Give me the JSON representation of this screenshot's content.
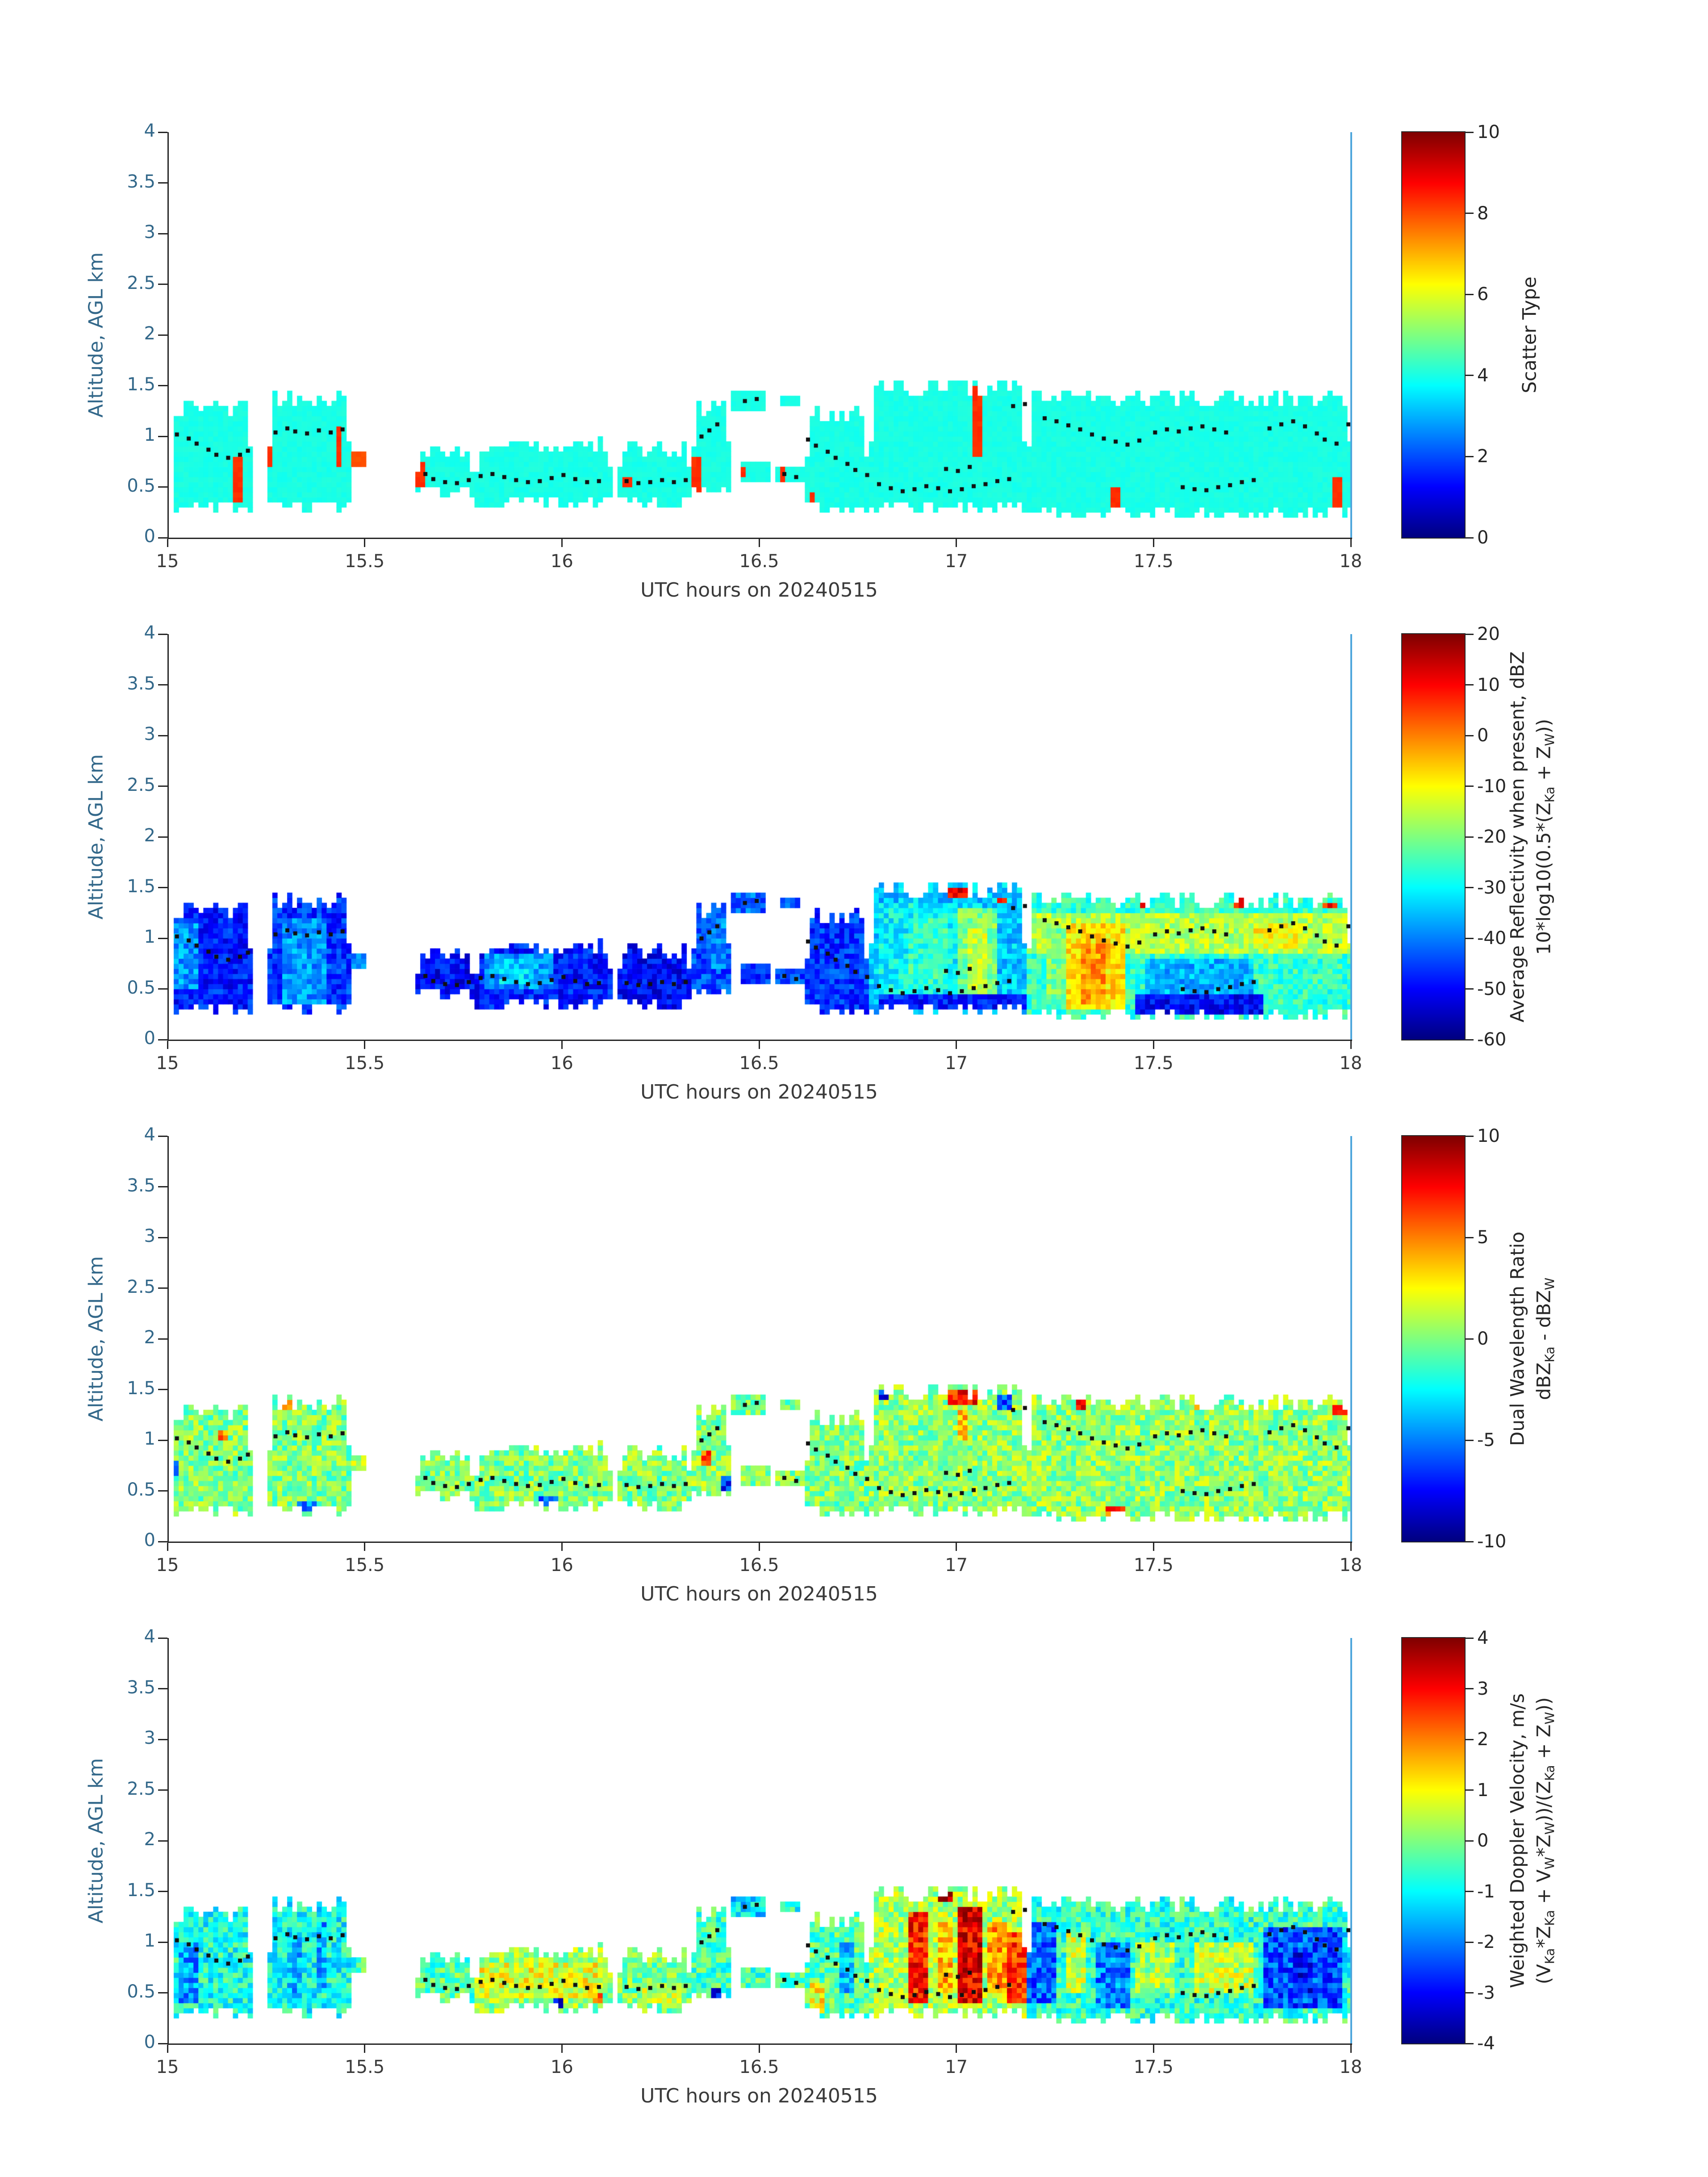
{
  "colors": {
    "background": "#ffffff",
    "y_axis_text": "#33688a",
    "x_axis_text": "#3a3a3a",
    "colorbar_text": "#262626",
    "spine": "#262626",
    "right_spine": "#4ea6dc",
    "dot_color": "#111111"
  },
  "chart_data": {
    "type": "heatmap",
    "n_panels": 4,
    "xlabel": "UTC hours on 20240515",
    "ylabel": "Altitude, AGL km",
    "x_range": [
      15,
      18
    ],
    "y_range": [
      0,
      4
    ],
    "xticks": [
      15,
      15.5,
      16,
      16.5,
      17,
      17.5,
      18
    ],
    "yticks": [
      0,
      0.5,
      1,
      1.5,
      2,
      2.5,
      3,
      3.5,
      4
    ],
    "cell_size": {
      "dt": 0.0125,
      "da": 0.05
    },
    "footprint_regions": [
      [
        15.0,
        15.21,
        0.3,
        1.3
      ],
      [
        15.25,
        15.46,
        0.3,
        1.4
      ],
      [
        15.46,
        15.5,
        0.68,
        0.86
      ],
      [
        15.62,
        15.77,
        0.44,
        0.86
      ],
      [
        15.77,
        16.13,
        0.34,
        0.94
      ],
      [
        16.14,
        16.33,
        0.36,
        0.9
      ],
      [
        16.33,
        16.42,
        0.44,
        1.32
      ],
      [
        16.43,
        16.51,
        1.24,
        1.46
      ],
      [
        16.45,
        16.53,
        0.56,
        0.76
      ],
      [
        16.54,
        16.61,
        0.54,
        0.7
      ],
      [
        16.55,
        16.6,
        1.28,
        1.42
      ],
      [
        16.61,
        16.78,
        0.3,
        1.26
      ],
      [
        16.78,
        17.18,
        0.28,
        1.52
      ],
      [
        17.18,
        18.0,
        0.26,
        1.38
      ]
    ],
    "track_dots": [
      [
        15.02,
        1.02
      ],
      [
        15.05,
        0.98
      ],
      [
        15.07,
        0.93
      ],
      [
        15.1,
        0.87
      ],
      [
        15.12,
        0.82
      ],
      [
        15.15,
        0.79
      ],
      [
        15.18,
        0.82
      ],
      [
        15.2,
        0.86
      ],
      [
        15.27,
        1.04
      ],
      [
        15.3,
        1.08
      ],
      [
        15.32,
        1.05
      ],
      [
        15.35,
        1.03
      ],
      [
        15.38,
        1.06
      ],
      [
        15.41,
        1.04
      ],
      [
        15.44,
        1.07
      ],
      [
        15.65,
        0.63
      ],
      [
        15.67,
        0.58
      ],
      [
        15.7,
        0.55
      ],
      [
        15.73,
        0.54
      ],
      [
        15.76,
        0.57
      ],
      [
        15.79,
        0.61
      ],
      [
        15.82,
        0.63
      ],
      [
        15.85,
        0.6
      ],
      [
        15.88,
        0.57
      ],
      [
        15.91,
        0.55
      ],
      [
        15.94,
        0.56
      ],
      [
        15.97,
        0.59
      ],
      [
        16.0,
        0.62
      ],
      [
        16.03,
        0.58
      ],
      [
        16.06,
        0.55
      ],
      [
        16.09,
        0.56
      ],
      [
        16.16,
        0.56
      ],
      [
        16.19,
        0.54
      ],
      [
        16.22,
        0.55
      ],
      [
        16.25,
        0.57
      ],
      [
        16.28,
        0.55
      ],
      [
        16.31,
        0.57
      ],
      [
        16.35,
        1.0
      ],
      [
        16.37,
        1.06
      ],
      [
        16.39,
        1.12
      ],
      [
        16.46,
        1.35
      ],
      [
        16.49,
        1.37
      ],
      [
        16.56,
        0.63
      ],
      [
        16.59,
        0.6
      ],
      [
        16.62,
        0.97
      ],
      [
        16.64,
        0.91
      ],
      [
        16.67,
        0.85
      ],
      [
        16.69,
        0.79
      ],
      [
        16.72,
        0.73
      ],
      [
        16.74,
        0.67
      ],
      [
        16.77,
        0.62
      ],
      [
        16.8,
        0.53
      ],
      [
        16.83,
        0.49
      ],
      [
        16.86,
        0.46
      ],
      [
        16.89,
        0.48
      ],
      [
        16.92,
        0.51
      ],
      [
        16.95,
        0.49
      ],
      [
        16.98,
        0.46
      ],
      [
        17.01,
        0.48
      ],
      [
        17.04,
        0.51
      ],
      [
        17.07,
        0.53
      ],
      [
        17.1,
        0.56
      ],
      [
        17.13,
        0.58
      ],
      [
        16.97,
        0.68
      ],
      [
        17.0,
        0.66
      ],
      [
        17.03,
        0.7
      ],
      [
        17.14,
        1.3
      ],
      [
        17.17,
        1.32
      ],
      [
        17.22,
        1.18
      ],
      [
        17.25,
        1.15
      ],
      [
        17.28,
        1.11
      ],
      [
        17.31,
        1.07
      ],
      [
        17.34,
        1.02
      ],
      [
        17.37,
        0.98
      ],
      [
        17.4,
        0.95
      ],
      [
        17.43,
        0.92
      ],
      [
        17.46,
        0.96
      ],
      [
        17.5,
        1.04
      ],
      [
        17.53,
        1.07
      ],
      [
        17.56,
        1.05
      ],
      [
        17.59,
        1.08
      ],
      [
        17.62,
        1.1
      ],
      [
        17.65,
        1.07
      ],
      [
        17.68,
        1.04
      ],
      [
        17.57,
        0.5
      ],
      [
        17.6,
        0.48
      ],
      [
        17.63,
        0.47
      ],
      [
        17.66,
        0.5
      ],
      [
        17.69,
        0.52
      ],
      [
        17.72,
        0.55
      ],
      [
        17.75,
        0.57
      ],
      [
        17.79,
        1.08
      ],
      [
        17.82,
        1.12
      ],
      [
        17.85,
        1.15
      ],
      [
        17.88,
        1.1
      ],
      [
        17.91,
        1.03
      ],
      [
        17.93,
        0.97
      ],
      [
        17.96,
        0.93
      ],
      [
        17.99,
        1.12
      ]
    ],
    "panels": [
      {
        "name": "scatter-type",
        "colorbar": {
          "min": 0,
          "max": 10,
          "ticks": [
            10,
            8,
            6,
            4,
            2,
            0
          ],
          "label_lines": [
            "Scatter Type"
          ]
        },
        "noise": 0.1,
        "region_values": [
          4,
          4,
          8,
          4,
          4,
          4,
          4,
          4,
          4,
          4,
          4,
          4,
          4,
          4
        ],
        "overlays": [
          [
            15.165,
            15.185,
            0.33,
            0.78,
            8.3
          ],
          [
            15.243,
            15.262,
            0.72,
            1.16,
            8.3
          ],
          [
            15.42,
            15.44,
            0.72,
            1.12,
            8.3
          ],
          [
            15.625,
            15.645,
            0.52,
            0.74,
            8.3
          ],
          [
            16.155,
            16.172,
            0.48,
            0.62,
            8.3
          ],
          [
            16.33,
            16.352,
            0.38,
            0.78,
            8.3
          ],
          [
            16.44,
            16.46,
            0.58,
            0.72,
            8.3
          ],
          [
            16.545,
            16.565,
            0.54,
            0.68,
            8.3
          ],
          [
            16.62,
            16.64,
            0.3,
            0.46,
            8.3
          ],
          [
            17.042,
            17.062,
            0.78,
            1.5,
            8.3
          ],
          [
            17.388,
            17.408,
            0.26,
            0.52,
            8.3
          ],
          [
            17.955,
            17.975,
            0.3,
            0.62,
            8.3
          ]
        ]
      },
      {
        "name": "reflectivity",
        "colorbar": {
          "min": -60,
          "max": 20,
          "ticks": [
            20,
            10,
            0,
            -10,
            -20,
            -30,
            -40,
            -50,
            -60
          ],
          "label_lines": [
            "Average Reflectivity when present, dBZ",
            "10*log10(0.5*(Z_{Ka} + Z_{W}))"
          ]
        },
        "noise": 6,
        "region_values": [
          -48,
          -46,
          -40,
          -50,
          -48,
          -50,
          -44,
          -42,
          -46,
          -44,
          -42,
          -46,
          -34,
          -26
        ],
        "overlays": [
          [
            15.0,
            15.08,
            0.5,
            1.15,
            -38
          ],
          [
            15.29,
            15.4,
            0.35,
            1.2,
            -38
          ],
          [
            15.8,
            15.97,
            0.5,
            0.85,
            -38
          ],
          [
            15.84,
            15.92,
            0.55,
            0.78,
            -33
          ],
          [
            16.36,
            16.41,
            0.7,
            1.3,
            -40
          ],
          [
            16.8,
            17.0,
            0.45,
            1.35,
            -30
          ],
          [
            16.88,
            16.98,
            0.5,
            1.2,
            -26
          ],
          [
            17.0,
            17.1,
            0.4,
            1.3,
            -20
          ],
          [
            17.02,
            17.07,
            0.5,
            1.1,
            -14
          ],
          [
            16.8,
            17.18,
            0.28,
            0.45,
            -48
          ],
          [
            17.18,
            18.0,
            0.85,
            1.25,
            -16
          ],
          [
            17.22,
            17.3,
            0.4,
            1.1,
            -20
          ],
          [
            17.28,
            17.42,
            0.3,
            1.15,
            -8
          ],
          [
            17.31,
            17.38,
            0.35,
            0.95,
            -2
          ],
          [
            17.45,
            17.78,
            0.25,
            0.45,
            -50
          ],
          [
            17.48,
            17.75,
            0.45,
            0.8,
            -36
          ],
          [
            17.75,
            17.88,
            0.9,
            1.15,
            -10
          ],
          [
            17.88,
            18.0,
            0.85,
            1.2,
            -16
          ],
          [
            16.98,
            17.04,
            1.42,
            1.52,
            12
          ],
          [
            17.1,
            17.13,
            1.35,
            1.42,
            10
          ],
          [
            17.46,
            17.49,
            1.28,
            1.36,
            8
          ],
          [
            17.7,
            17.73,
            1.3,
            1.38,
            10
          ],
          [
            17.93,
            17.96,
            1.28,
            1.35,
            8
          ]
        ]
      },
      {
        "name": "dual-wavelength-ratio",
        "colorbar": {
          "min": -10,
          "max": 10,
          "ticks": [
            10,
            5,
            0,
            -5,
            -10
          ],
          "label_lines": [
            "Dual Wavelength Ratio",
            "dBZ_{Ka} - dBZ_{W}"
          ]
        },
        "noise": 2,
        "region_values": [
          0,
          0,
          1.5,
          0,
          0,
          0,
          0.3,
          0,
          0,
          0,
          0,
          0,
          0.3,
          0.3
        ],
        "overlays": [
          [
            15.0,
            15.03,
            0.65,
            0.8,
            -6
          ],
          [
            15.12,
            15.15,
            1.0,
            1.1,
            5
          ],
          [
            15.28,
            15.31,
            1.32,
            1.4,
            6
          ],
          [
            15.33,
            15.38,
            0.3,
            0.4,
            -5
          ],
          [
            15.94,
            15.99,
            0.35,
            0.45,
            -6
          ],
          [
            16.35,
            16.38,
            0.75,
            0.9,
            6
          ],
          [
            16.4,
            16.42,
            0.5,
            0.65,
            -7
          ],
          [
            16.8,
            16.83,
            1.4,
            1.52,
            -7
          ],
          [
            16.98,
            17.05,
            1.35,
            1.52,
            7
          ],
          [
            17.0,
            17.03,
            1.0,
            1.3,
            4
          ],
          [
            17.1,
            17.14,
            1.3,
            1.45,
            -6
          ],
          [
            17.3,
            17.33,
            1.3,
            1.38,
            7
          ],
          [
            17.38,
            17.42,
            0.26,
            0.35,
            6
          ],
          [
            17.6,
            17.63,
            1.3,
            1.37,
            6
          ],
          [
            17.95,
            18.0,
            1.25,
            1.35,
            7
          ]
        ]
      },
      {
        "name": "doppler-velocity",
        "colorbar": {
          "min": -4,
          "max": 4,
          "ticks": [
            4,
            3,
            2,
            1,
            0,
            -1,
            -2,
            -3,
            -4
          ],
          "label_lines": [
            "Weighted Doppler Velocity, m/s",
            "(V_{Ka}*Z_{Ka} + V_{W}*Z_{W}))/(Z_{Ka} + Z_{W}))"
          ]
        },
        "noise": 0.85,
        "region_values": [
          -0.8,
          -0.9,
          -0.5,
          -0.3,
          0.2,
          0,
          -0.5,
          -1.2,
          -0.5,
          -0.5,
          -0.8,
          -0.3,
          0.3,
          -0.6
        ],
        "overlays": [
          [
            15.03,
            15.07,
            0.4,
            1.0,
            -1.8
          ],
          [
            15.3,
            15.34,
            0.4,
            1.1,
            -1.5
          ],
          [
            15.37,
            15.4,
            0.5,
            1.2,
            -1.8
          ],
          [
            15.78,
            16.1,
            0.45,
            0.8,
            0.8
          ],
          [
            15.97,
            16.0,
            0.35,
            0.45,
            -3.0
          ],
          [
            16.07,
            16.1,
            0.4,
            0.5,
            2.0
          ],
          [
            16.2,
            16.3,
            0.4,
            0.6,
            0.5
          ],
          [
            16.37,
            16.4,
            0.44,
            0.55,
            -3.2
          ],
          [
            16.62,
            16.66,
            0.3,
            0.6,
            1.0
          ],
          [
            16.7,
            16.74,
            0.5,
            1.0,
            -1.5
          ],
          [
            16.88,
            16.93,
            0.4,
            1.3,
            2.8
          ],
          [
            16.95,
            16.99,
            0.5,
            1.2,
            1.5
          ],
          [
            17.0,
            17.06,
            0.4,
            1.35,
            3.2
          ],
          [
            17.08,
            17.12,
            0.5,
            1.2,
            1.8
          ],
          [
            17.13,
            17.17,
            0.4,
            1.1,
            2.5
          ],
          [
            17.18,
            17.25,
            0.4,
            1.2,
            -2.2
          ],
          [
            17.27,
            17.33,
            0.5,
            1.1,
            0.5
          ],
          [
            17.35,
            17.44,
            0.35,
            1.0,
            -2.0
          ],
          [
            17.45,
            17.55,
            0.5,
            1.0,
            0.3
          ],
          [
            17.6,
            17.75,
            0.5,
            1.0,
            0.5
          ],
          [
            17.78,
            17.97,
            0.35,
            1.15,
            -2.4
          ],
          [
            17.85,
            17.9,
            0.5,
            0.9,
            -3.0
          ],
          [
            16.95,
            16.99,
            1.42,
            1.52,
            3.8
          ],
          [
            17.97,
            18.0,
            0.6,
            1.1,
            -1.0
          ]
        ]
      }
    ]
  }
}
